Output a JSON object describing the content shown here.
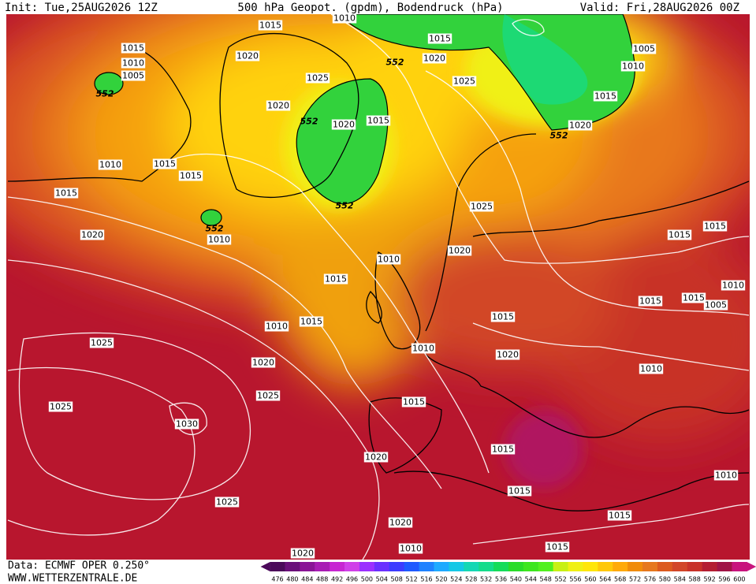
{
  "header": {
    "init": "Init: Tue,25AUG2026 12Z",
    "title": "500 hPa Geopot. (gpdm), Bodendruck (hPa)",
    "valid": "Valid: Fri,28AUG2026 00Z"
  },
  "footer": {
    "data": "Data: ECMWF OPER 0.250°",
    "site": "WWW.WETTERZENTRALE.DE"
  },
  "colorbar": {
    "labels": [
      476,
      480,
      484,
      488,
      492,
      496,
      500,
      504,
      508,
      512,
      516,
      520,
      524,
      528,
      532,
      536,
      540,
      544,
      548,
      552,
      556,
      560,
      564,
      568,
      572,
      576,
      580,
      584,
      588,
      592,
      596,
      600
    ],
    "colors": [
      "#4b0a5a",
      "#6a0f7a",
      "#8a1496",
      "#a81cb4",
      "#c726d2",
      "#d040e8",
      "#9b30ff",
      "#6a30ff",
      "#3c3cff",
      "#1e5aff",
      "#1e82ff",
      "#1eaaff",
      "#14c8e6",
      "#14d7b4",
      "#14dc8c",
      "#14dc5a",
      "#28dc28",
      "#3ce61e",
      "#50f01e",
      "#c8f014",
      "#f0f014",
      "#ffe60a",
      "#ffc80a",
      "#ffaa0a",
      "#f08c0a",
      "#e6781e",
      "#dc5a1e",
      "#d24628",
      "#c83228",
      "#b41e32",
      "#a01446",
      "#c8147d"
    ]
  },
  "map_labels": [
    "1015",
    "1010",
    "1015",
    "1020",
    "1015",
    "1010",
    "1005",
    "552",
    "1025",
    "552",
    "1020",
    "1025",
    "1005",
    "1010",
    "1015",
    "1020",
    "552",
    "1020",
    "552",
    "1020",
    "1015",
    "1010",
    "1015",
    "1015",
    "1015",
    "1020",
    "552",
    "1010",
    "552",
    "1025",
    "1015",
    "1015",
    "1020",
    "1010",
    "1015",
    "1010",
    "1015",
    "1015",
    "1005",
    "1010",
    "1015",
    "1015",
    "1025",
    "1010",
    "1020",
    "1020",
    "1010",
    "1025",
    "1025",
    "1015",
    "1030",
    "1015",
    "1020",
    "1010",
    "1015",
    "1025",
    "1015",
    "1020",
    "1010",
    "1015",
    "1020"
  ]
}
